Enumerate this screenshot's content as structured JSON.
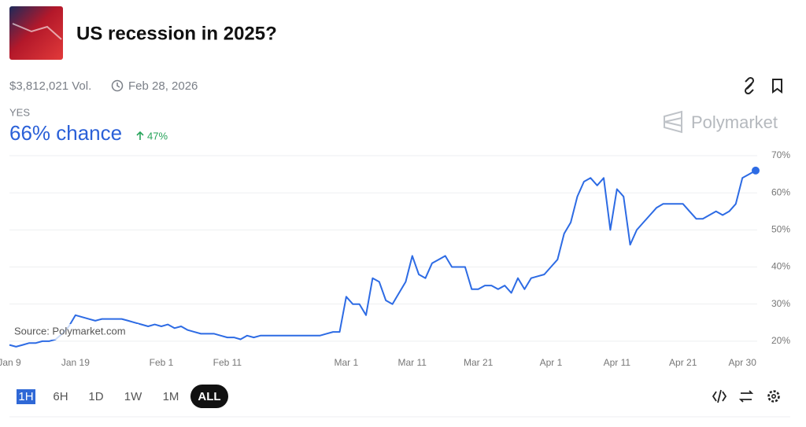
{
  "header": {
    "title": "US recession in 2025?",
    "volume": "$3,812,021 Vol.",
    "end_date": "Feb 28, 2026",
    "outcome": "YES",
    "chance": "66% chance",
    "change": "47%"
  },
  "brand": "Polymarket",
  "controls": {
    "ranges": [
      "1H",
      "6H",
      "1D",
      "1W",
      "1M",
      "ALL"
    ]
  },
  "chart_data": {
    "type": "line",
    "source": "Source: Polymarket.com",
    "color": "#2d6be4",
    "grid": true,
    "x": [
      "Jan 9",
      "Jan 10",
      "Jan 11",
      "Jan 12",
      "Jan 13",
      "Jan 14",
      "Jan 15",
      "Jan 16",
      "Jan 17",
      "Jan 18",
      "Jan 19",
      "Jan 20",
      "Jan 21",
      "Jan 22",
      "Jan 23",
      "Jan 24",
      "Jan 25",
      "Jan 26",
      "Jan 27",
      "Jan 28",
      "Jan 29",
      "Jan 30",
      "Jan 31",
      "Feb 1",
      "Feb 2",
      "Feb 3",
      "Feb 4",
      "Feb 5",
      "Feb 6",
      "Feb 7",
      "Feb 8",
      "Feb 9",
      "Feb 10",
      "Feb 11",
      "Feb 12",
      "Feb 13",
      "Feb 14",
      "Feb 15",
      "Feb 16",
      "Feb 17",
      "Feb 18",
      "Feb 19",
      "Feb 20",
      "Feb 21",
      "Feb 22",
      "Feb 23",
      "Feb 24",
      "Feb 25",
      "Feb 26",
      "Feb 27",
      "Feb 28",
      "Mar 1",
      "Mar 2",
      "Mar 3",
      "Mar 4",
      "Mar 5",
      "Mar 6",
      "Mar 7",
      "Mar 8",
      "Mar 9",
      "Mar 10",
      "Mar 11",
      "Mar 12",
      "Mar 13",
      "Mar 14",
      "Mar 15",
      "Mar 16",
      "Mar 17",
      "Mar 18",
      "Mar 19",
      "Mar 20",
      "Mar 21",
      "Mar 22",
      "Mar 23",
      "Mar 24",
      "Mar 25",
      "Mar 26",
      "Mar 27",
      "Mar 28",
      "Mar 29",
      "Mar 30",
      "Mar 31",
      "Apr 1",
      "Apr 2",
      "Apr 3",
      "Apr 4",
      "Apr 5",
      "Apr 6",
      "Apr 7",
      "Apr 8",
      "Apr 9",
      "Apr 10",
      "Apr 11",
      "Apr 12",
      "Apr 13",
      "Apr 14",
      "Apr 15",
      "Apr 16",
      "Apr 17",
      "Apr 18",
      "Apr 19",
      "Apr 20",
      "Apr 21",
      "Apr 22",
      "Apr 23",
      "Apr 24",
      "Apr 25",
      "Apr 26",
      "Apr 27",
      "Apr 28",
      "Apr 29",
      "Apr 30",
      "May 1",
      "May 2"
    ],
    "values": [
      19,
      18.5,
      19,
      19.5,
      19.5,
      20,
      20,
      20.5,
      22,
      24,
      27,
      26.5,
      26,
      25.5,
      26,
      26,
      26,
      26,
      25.5,
      25,
      24.5,
      24,
      24.5,
      24,
      24.5,
      23.5,
      24,
      23,
      22.5,
      22,
      22,
      22,
      21.5,
      21,
      21,
      20.5,
      21.5,
      21,
      21.5,
      21.5,
      21.5,
      21.5,
      21.5,
      21.5,
      21.5,
      21.5,
      21.5,
      21.5,
      22,
      22.5,
      22.5,
      32,
      30,
      30,
      27,
      37,
      36,
      31,
      30,
      33,
      36,
      43,
      38,
      37,
      41,
      42,
      43,
      40,
      40,
      40,
      34,
      34,
      35,
      35,
      34,
      35,
      33,
      37,
      34,
      37,
      37.5,
      38,
      40,
      42,
      49,
      52,
      59,
      63,
      64,
      62,
      64,
      50,
      61,
      59,
      46,
      50,
      52,
      54,
      56,
      57,
      57,
      57,
      57,
      55,
      53,
      53,
      54,
      55,
      54,
      55,
      57,
      64,
      65,
      66
    ],
    "xticks": [
      "Jan 9",
      "Jan 19",
      "Feb 1",
      "Feb 11",
      "Mar 1",
      "Mar 11",
      "Mar 21",
      "Apr 1",
      "Apr 11",
      "Apr 21",
      "Apr 30"
    ],
    "ylim": [
      17,
      72
    ],
    "yticks": [
      {
        "value": 20,
        "label": "20%"
      },
      {
        "value": 30,
        "label": "30%"
      },
      {
        "value": 40,
        "label": "40%"
      },
      {
        "value": 50,
        "label": "50%"
      },
      {
        "value": 60,
        "label": "60%"
      },
      {
        "value": 70,
        "label": "70%"
      }
    ]
  }
}
